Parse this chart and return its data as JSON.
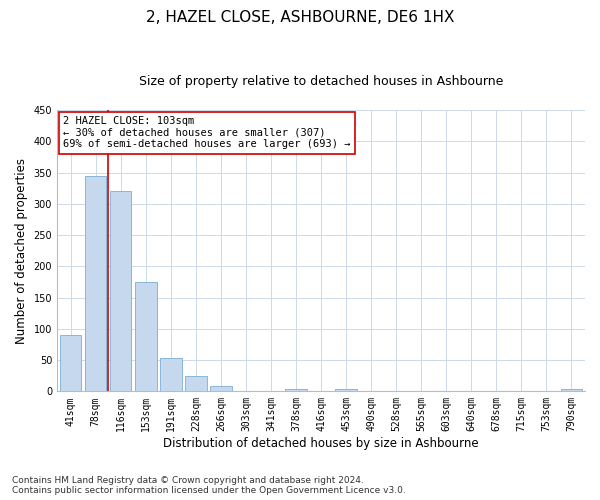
{
  "title": "2, HAZEL CLOSE, ASHBOURNE, DE6 1HX",
  "subtitle": "Size of property relative to detached houses in Ashbourne",
  "xlabel": "Distribution of detached houses by size in Ashbourne",
  "ylabel": "Number of detached properties",
  "categories": [
    "41sqm",
    "78sqm",
    "116sqm",
    "153sqm",
    "191sqm",
    "228sqm",
    "266sqm",
    "303sqm",
    "341sqm",
    "378sqm",
    "416sqm",
    "453sqm",
    "490sqm",
    "528sqm",
    "565sqm",
    "603sqm",
    "640sqm",
    "678sqm",
    "715sqm",
    "753sqm",
    "790sqm"
  ],
  "values": [
    90,
    345,
    320,
    175,
    53,
    25,
    8,
    0,
    0,
    3,
    0,
    3,
    0,
    0,
    0,
    0,
    0,
    0,
    0,
    0,
    3
  ],
  "bar_color": "#c5d8ed",
  "bar_edge_color": "#7bafd4",
  "vline_x_data": 1.5,
  "vline_color": "#cc0000",
  "ylim": [
    0,
    450
  ],
  "yticks": [
    0,
    50,
    100,
    150,
    200,
    250,
    300,
    350,
    400,
    450
  ],
  "annotation_title": "2 HAZEL CLOSE: 103sqm",
  "annotation_line1": "← 30% of detached houses are smaller (307)",
  "annotation_line2": "69% of semi-detached houses are larger (693) →",
  "annotation_box_color": "#ffffff",
  "annotation_box_edge": "#cc0000",
  "footer_line1": "Contains HM Land Registry data © Crown copyright and database right 2024.",
  "footer_line2": "Contains public sector information licensed under the Open Government Licence v3.0.",
  "bg_color": "#ffffff",
  "grid_color": "#ccd9e8",
  "title_fontsize": 11,
  "subtitle_fontsize": 9,
  "axis_label_fontsize": 8.5,
  "tick_fontsize": 7,
  "annotation_fontsize": 7.5,
  "footer_fontsize": 6.5
}
